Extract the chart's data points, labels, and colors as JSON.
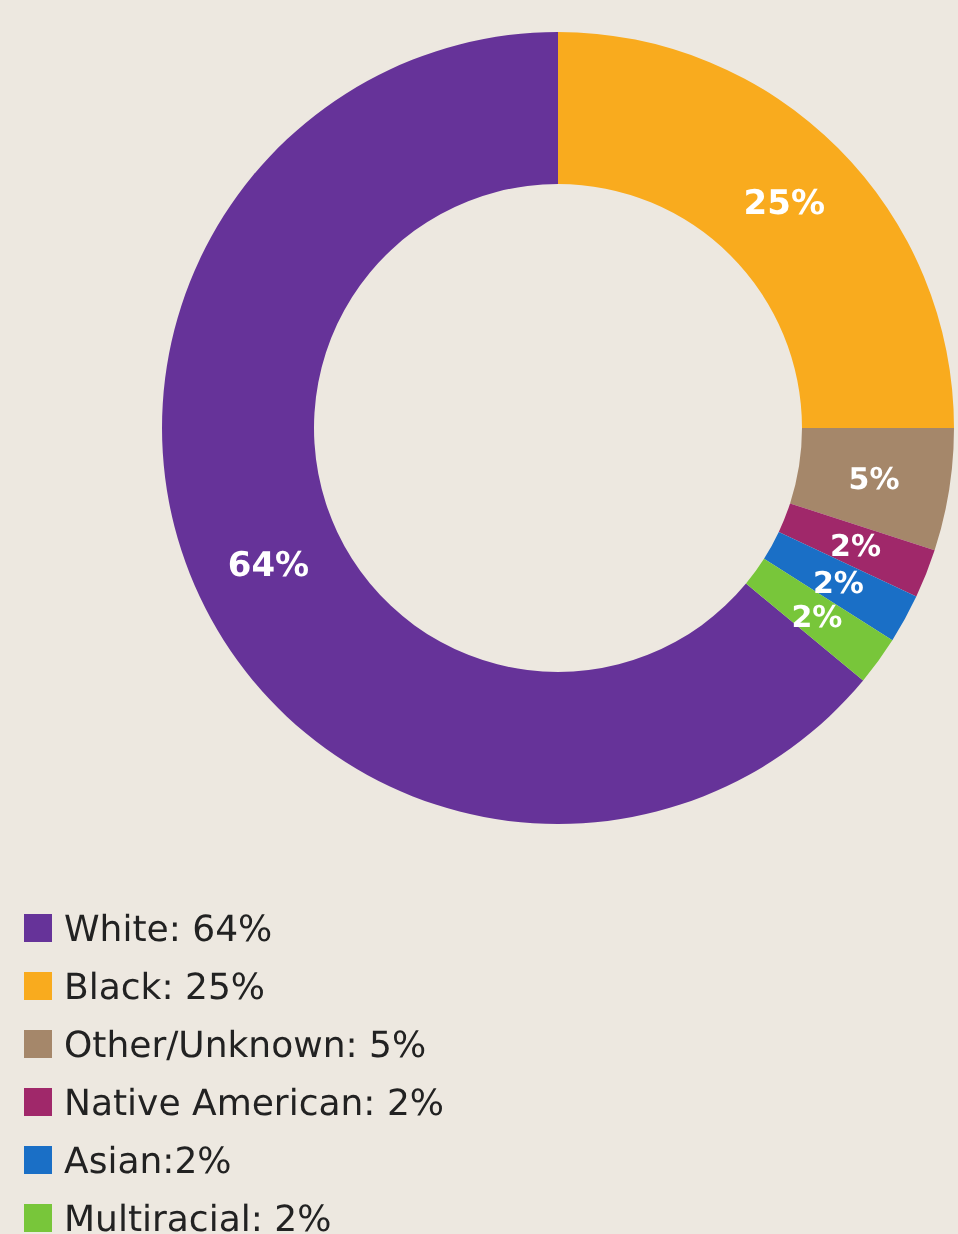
{
  "chart_data": {
    "type": "donut",
    "categories": [
      "White: 64%",
      "Black: 25%",
      "Other/Unknown: 5%",
      "Native American: 2%",
      "Asian:2%",
      "Multiracial: 2%"
    ],
    "values": [
      64,
      25,
      5,
      2,
      2,
      2
    ],
    "value_labels": [
      "64%",
      "25%",
      "5%",
      "2%",
      "2%",
      "2%"
    ],
    "colors": [
      "#663399",
      "#f9ab1e",
      "#a5876a",
      "#a0286a",
      "#1a6fc6",
      "#78c63a"
    ],
    "legend": "bottom left"
  }
}
